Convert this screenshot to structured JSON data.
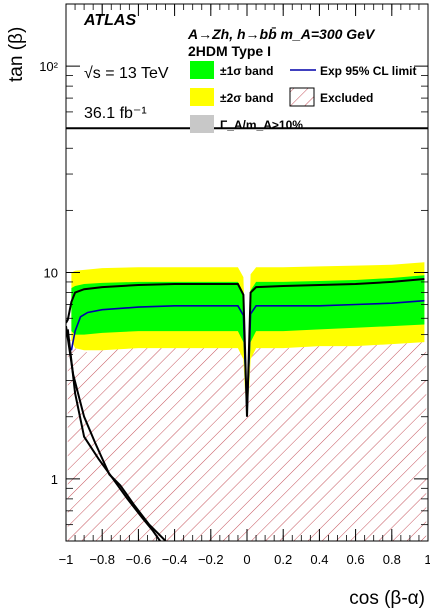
{
  "chart_data": {
    "type": "area",
    "x_range": [
      -1,
      1
    ],
    "y_range": [
      0.5,
      200
    ],
    "y_scale": "log",
    "xlabel": "cos (β-α)",
    "ylabel": "tan (β)",
    "x_ticks": [
      {
        "v": -1,
        "label": "−1"
      },
      {
        "v": -0.8,
        "label": "−0.8"
      },
      {
        "v": -0.6,
        "label": "−0.6"
      },
      {
        "v": -0.4,
        "label": "−0.4"
      },
      {
        "v": -0.2,
        "label": "−0.2"
      },
      {
        "v": 0,
        "label": "0"
      },
      {
        "v": 0.2,
        "label": "0.2"
      },
      {
        "v": 0.4,
        "label": "0.4"
      },
      {
        "v": 0.6,
        "label": "0.6"
      },
      {
        "v": 0.8,
        "label": "0.8"
      },
      {
        "v": 1,
        "label": "1"
      }
    ],
    "y_ticks": [
      {
        "v": 1,
        "label": "1"
      },
      {
        "v": 10,
        "label": "10"
      },
      {
        "v": 100,
        "label": "10²"
      }
    ],
    "experiment": "ATLAS",
    "process": "A→Zh, h→bb̄ m_A=300 GeV",
    "model": "2HDM Type I",
    "energy": "√s = 13 TeV",
    "luminosity": "36.1 fb⁻¹",
    "legend": [
      {
        "key": "one_sigma",
        "label": "±1σ band",
        "color": "#00ff00"
      },
      {
        "key": "exp",
        "label": "Exp 95% CL limit",
        "color": "#0000aa"
      },
      {
        "key": "two_sigma",
        "label": "±2σ band",
        "color": "#ffff00"
      },
      {
        "key": "excluded",
        "label": "Excluded",
        "color": "#c0404a"
      },
      {
        "key": "width",
        "label": "Γ_A/m_A>10%",
        "color": "#c8c8c8"
      }
    ],
    "series": [
      {
        "name": "Exp 95% CL limit",
        "color": "#0000aa",
        "points": [
          [
            -0.97,
            4.2
          ],
          [
            -0.95,
            5.2
          ],
          [
            -0.92,
            6.1
          ],
          [
            -0.88,
            6.4
          ],
          [
            -0.8,
            6.6
          ],
          [
            -0.6,
            6.8
          ],
          [
            -0.4,
            6.9
          ],
          [
            -0.2,
            6.9
          ],
          [
            -0.05,
            6.9
          ],
          [
            -0.02,
            6.2
          ],
          [
            -0.01,
            3.5
          ],
          [
            0,
            2.1
          ],
          [
            0.01,
            3.5
          ],
          [
            0.02,
            6.3
          ],
          [
            0.05,
            6.9
          ],
          [
            0.2,
            6.9
          ],
          [
            0.4,
            6.9
          ],
          [
            0.6,
            7.0
          ],
          [
            0.8,
            7.1
          ],
          [
            0.98,
            7.3
          ]
        ]
      },
      {
        "name": "Excluded boundary",
        "color": "#000000",
        "points": [
          [
            -1,
            5.7
          ],
          [
            -0.99,
            5.9
          ],
          [
            -0.97,
            7.2
          ],
          [
            -0.95,
            8.0
          ],
          [
            -0.9,
            8.3
          ],
          [
            -0.8,
            8.5
          ],
          [
            -0.6,
            8.7
          ],
          [
            -0.4,
            8.8
          ],
          [
            -0.2,
            8.8
          ],
          [
            -0.05,
            8.8
          ],
          [
            -0.02,
            7.8
          ],
          [
            -0.01,
            4.0
          ],
          [
            0,
            2.0
          ],
          [
            0.01,
            4.0
          ],
          [
            0.02,
            8.0
          ],
          [
            0.05,
            8.5
          ],
          [
            0.2,
            8.6
          ],
          [
            0.4,
            8.7
          ],
          [
            0.6,
            8.8
          ],
          [
            0.8,
            9.0
          ],
          [
            0.98,
            9.3
          ]
        ]
      },
      {
        "name": "Left boundary (outer)",
        "color": "#000000",
        "points": [
          [
            -1,
            5.5
          ],
          [
            -0.96,
            3.2
          ],
          [
            -0.9,
            2.0
          ],
          [
            -0.84,
            1.5
          ],
          [
            -0.76,
            1.05
          ],
          [
            -0.7,
            0.93
          ],
          [
            -0.62,
            0.74
          ],
          [
            -0.54,
            0.6
          ],
          [
            -0.45,
            0.5
          ]
        ]
      },
      {
        "name": "Left boundary (inner)",
        "color": "#000000",
        "points": [
          [
            -0.99,
            5.3
          ],
          [
            -0.95,
            2.6
          ],
          [
            -0.9,
            1.6
          ],
          [
            -0.82,
            1.25
          ],
          [
            -0.74,
            1.0
          ],
          [
            -0.66,
            0.8
          ],
          [
            -0.58,
            0.65
          ],
          [
            -0.52,
            0.56
          ],
          [
            -0.48,
            0.5
          ]
        ]
      }
    ],
    "bands": {
      "two_sigma": {
        "left": [
          [
            -0.97,
            4.7,
            10.0
          ],
          [
            -0.95,
            4.3,
            10.2
          ],
          [
            -0.9,
            4.2,
            10.3
          ],
          [
            -0.8,
            4.2,
            10.5
          ],
          [
            -0.6,
            4.3,
            10.6
          ],
          [
            -0.4,
            4.3,
            10.6
          ],
          [
            -0.2,
            4.3,
            10.6
          ],
          [
            -0.05,
            4.3,
            10.6
          ],
          [
            -0.02,
            3.8,
            9.5
          ],
          [
            -0.01,
            2.5,
            5.0
          ]
        ],
        "right": [
          [
            0.01,
            2.5,
            5.0
          ],
          [
            0.02,
            3.8,
            9.8
          ],
          [
            0.05,
            4.3,
            10.6
          ],
          [
            0.2,
            4.3,
            10.6
          ],
          [
            0.4,
            4.4,
            10.7
          ],
          [
            0.6,
            4.4,
            10.8
          ],
          [
            0.8,
            4.5,
            10.9
          ],
          [
            0.98,
            4.6,
            11.2
          ]
        ]
      },
      "one_sigma": {
        "left": [
          [
            -0.97,
            5.2,
            8.4
          ],
          [
            -0.95,
            5.0,
            8.6
          ],
          [
            -0.9,
            5.0,
            8.8
          ],
          [
            -0.8,
            5.1,
            8.9
          ],
          [
            -0.6,
            5.2,
            9.0
          ],
          [
            -0.4,
            5.2,
            9.0
          ],
          [
            -0.2,
            5.2,
            9.0
          ],
          [
            -0.05,
            5.2,
            9.0
          ],
          [
            -0.02,
            4.6,
            8.0
          ],
          [
            -0.01,
            2.9,
            4.4
          ]
        ],
        "right": [
          [
            0.01,
            2.9,
            4.4
          ],
          [
            0.02,
            4.6,
            8.2
          ],
          [
            0.05,
            5.2,
            9.0
          ],
          [
            0.2,
            5.2,
            9.0
          ],
          [
            0.4,
            5.3,
            9.1
          ],
          [
            0.6,
            5.4,
            9.2
          ],
          [
            0.8,
            5.5,
            9.4
          ],
          [
            0.98,
            5.6,
            9.7
          ]
        ]
      }
    },
    "excluded_region": [
      [
        -0.99,
        5.2
      ],
      [
        -0.97,
        4.6
      ],
      [
        -0.95,
        4.3
      ],
      [
        -0.9,
        4.1
      ],
      [
        -0.8,
        4.2
      ],
      [
        -0.6,
        4.3
      ],
      [
        -0.4,
        4.3
      ],
      [
        -0.2,
        4.3
      ],
      [
        -0.05,
        4.3
      ],
      [
        -0.02,
        3.8
      ],
      [
        -0.01,
        2.5
      ],
      [
        0,
        2.0
      ],
      [
        0.01,
        2.5
      ],
      [
        0.02,
        3.8
      ],
      [
        0.05,
        4.3
      ],
      [
        0.2,
        4.3
      ],
      [
        0.4,
        4.4
      ],
      [
        0.6,
        4.4
      ],
      [
        0.8,
        4.5
      ],
      [
        0.99,
        4.6
      ]
    ],
    "width_limit": 50,
    "grid": false
  }
}
